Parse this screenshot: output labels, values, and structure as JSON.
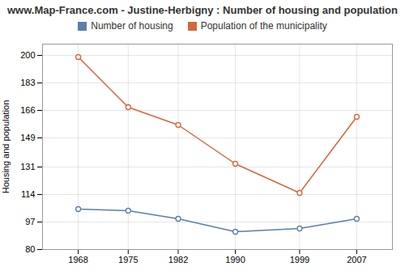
{
  "chart_data": {
    "type": "line",
    "title": "www.Map-France.com - Justine-Herbigny : Number of housing and population",
    "x": [
      1968,
      1975,
      1982,
      1990,
      1999,
      2007
    ],
    "series": [
      {
        "name": "Number of housing",
        "color": "#5b7fa6",
        "values": [
          105,
          104,
          99,
          91,
          93,
          99
        ]
      },
      {
        "name": "Population of the municipality",
        "color": "#d4673a",
        "values": [
          199,
          168,
          157,
          133,
          115,
          162
        ]
      }
    ],
    "ylabel": "Housing and population",
    "xlim": [
      1963,
      2012
    ],
    "xticks": [
      1968,
      1975,
      1982,
      1990,
      1999,
      2007
    ],
    "ylim": [
      80,
      207
    ],
    "yticks": [
      80,
      97,
      114,
      131,
      149,
      166,
      183,
      200
    ],
    "grid": true,
    "legend": "top",
    "marker": "circle"
  }
}
